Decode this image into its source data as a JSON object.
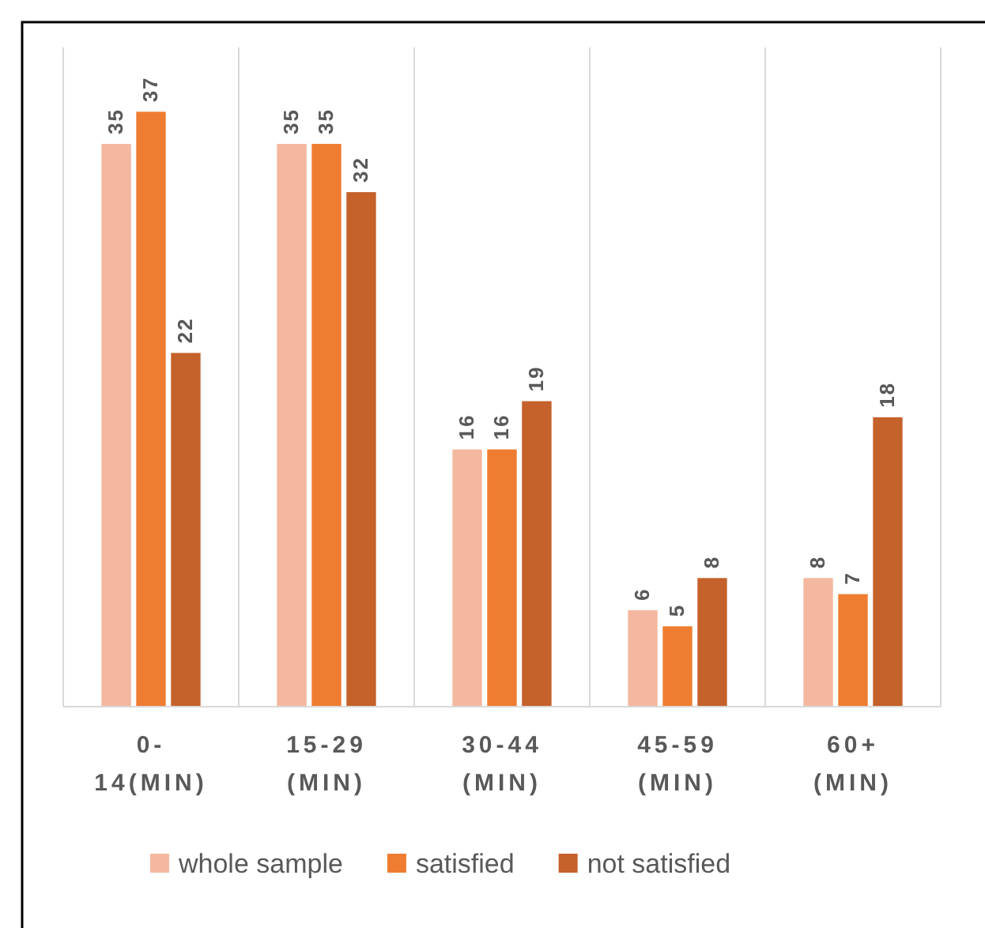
{
  "chart_data": {
    "type": "bar",
    "categories": [
      "0- 14(MIN)",
      "15-29 (MIN)",
      "30-44 (MIN)",
      "45-59 (MIN)",
      "60+ (MIN)"
    ],
    "series": [
      {
        "name": "whole sample",
        "color": "#f4b8a0",
        "values": [
          35,
          35,
          16,
          6,
          8
        ]
      },
      {
        "name": "satisfied",
        "color": "#ef7d31",
        "values": [
          37,
          35,
          16,
          5,
          7
        ]
      },
      {
        "name": "not satisfied",
        "color": "#c5612a",
        "values": [
          22,
          32,
          19,
          8,
          18
        ]
      }
    ],
    "ylim": [
      0,
      41
    ],
    "tick_labels": "x",
    "data_labels": true,
    "legend": "bottom"
  }
}
